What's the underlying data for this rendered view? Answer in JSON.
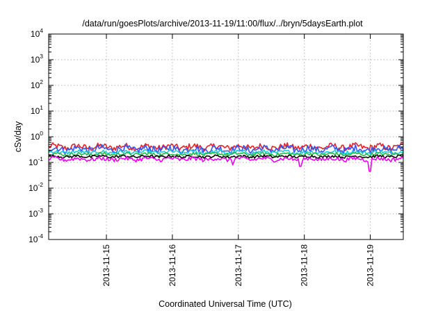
{
  "chart_data": {
    "type": "line",
    "title": "/data/run/goesPlots/archive/2013-11-19/11:00/flux/../bryn/5daysEarth.plot",
    "xlabel": "Coordinated Universal Time (UTC)",
    "ylabel": "cSv/day",
    "yscale": "log",
    "ylim": [
      0.0001,
      10000
    ],
    "y_ticks": [
      {
        "base": "10",
        "exp": "-4",
        "value": 0.0001
      },
      {
        "base": "10",
        "exp": "-3",
        "value": 0.001
      },
      {
        "base": "10",
        "exp": "-2",
        "value": 0.01
      },
      {
        "base": "10",
        "exp": "-1",
        "value": 0.1
      },
      {
        "base": "10",
        "exp": "0",
        "value": 1
      },
      {
        "base": "10",
        "exp": "1",
        "value": 10
      },
      {
        "base": "10",
        "exp": "2",
        "value": 100
      },
      {
        "base": "10",
        "exp": "3",
        "value": 1000
      },
      {
        "base": "10",
        "exp": "4",
        "value": 10000
      }
    ],
    "xlim": [
      "2013-11-14 03:00",
      "2013-11-19 12:00"
    ],
    "x_ticks": [
      "2013-11-15",
      "2013-11-16",
      "2013-11-17",
      "2013-11-18",
      "2013-11-19"
    ],
    "grid": true,
    "series": [
      {
        "color": "#e8202a",
        "mean": 0.4,
        "variability": 0.12
      },
      {
        "color": "#3355ee",
        "mean": 0.33,
        "variability": 0.13
      },
      {
        "color": "#22c8d8",
        "mean": 0.25,
        "variability": 0.07
      },
      {
        "color": "#22bb44",
        "mean": 0.21,
        "variability": 0.06
      },
      {
        "color": "#000000",
        "mean": 0.17,
        "variability": 0.05
      },
      {
        "color": "#ee00ee",
        "mean": 0.135,
        "variability": 0.08,
        "dips": [
          [
            "2013-11-16 22:00",
            0.08
          ],
          [
            "2013-11-17 22:30",
            0.07
          ],
          [
            "2013-11-18 23:50",
            0.045
          ]
        ]
      }
    ]
  }
}
